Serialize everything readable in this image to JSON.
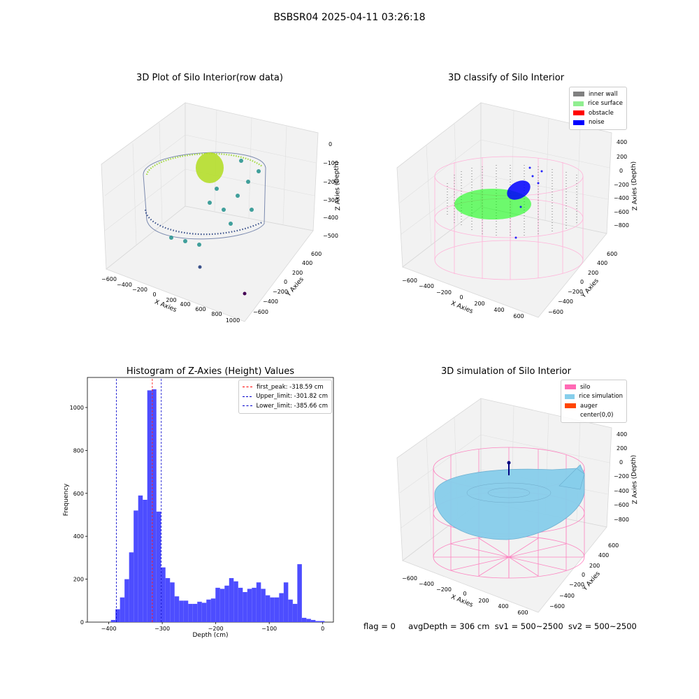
{
  "suptitle": "BSBSR04 2025-04-11 03:26:18",
  "panels": {
    "raw": {
      "title": "3D Plot of Silo Interior(row data)",
      "x_label": "X Axies",
      "y_label": "Y Axies",
      "z_label": "Z Axies (Depth)",
      "x_ticks": [
        "−600",
        "−400",
        "−200",
        "0",
        "200",
        "400",
        "600",
        "800",
        "1000"
      ],
      "y_ticks": [
        "600",
        "400",
        "200",
        "0",
        "−200",
        "−400",
        "−600"
      ],
      "z_ticks": [
        "0",
        "−100",
        "−200",
        "−300",
        "−400",
        "−500"
      ]
    },
    "classify": {
      "title": "3D classify of Silo Interior",
      "x_label": "X Axies",
      "y_label": "Y Axies",
      "z_label": "Z Axies (Depth)",
      "x_ticks": [
        "−600",
        "−400",
        "−200",
        "0",
        "200",
        "400",
        "600"
      ],
      "y_ticks": [
        "600",
        "400",
        "200",
        "0",
        "−200",
        "−400",
        "−600"
      ],
      "z_ticks": [
        "400",
        "200",
        "0",
        "−200",
        "−400",
        "−600",
        "−800"
      ],
      "legend": [
        {
          "label": "inner wall",
          "color": "#808080"
        },
        {
          "label": "rice surface",
          "color": "#90ee90"
        },
        {
          "label": "obstacle",
          "color": "#ff0000"
        },
        {
          "label": "noise",
          "color": "#0000ff"
        }
      ]
    },
    "simulation": {
      "title": "3D simulation of Silo Interior",
      "x_label": "X Axies",
      "y_label": "Y Axies",
      "z_label": "Z Axies (Depth)",
      "x_ticks": [
        "−600",
        "−400",
        "−200",
        "0",
        "200",
        "400",
        "600"
      ],
      "y_ticks": [
        "600",
        "400",
        "200",
        "0",
        "−200",
        "−400",
        "−600"
      ],
      "z_ticks": [
        "400",
        "200",
        "0",
        "−200",
        "−400",
        "−600",
        "−800"
      ],
      "legend": [
        {
          "label": "silo",
          "color": "#ff69b4"
        },
        {
          "label": "rice simulation",
          "color": "#87ceeb"
        },
        {
          "label": "auger",
          "color": "#ff4500"
        },
        {
          "label": "center(0,0)",
          "color": ""
        }
      ]
    }
  },
  "chart_data": {
    "type": "bar",
    "title": "Histogram of Z-Axies (Height) Values",
    "xlabel": "Depth (cm)",
    "ylabel": "Frequency",
    "xlim": [
      -440,
      20
    ],
    "ylim": [
      0,
      1140
    ],
    "x_ticks": [
      -400,
      -300,
      -200,
      -100,
      0
    ],
    "x_tick_labels": [
      "−400",
      "−300",
      "−200",
      "−100",
      "0"
    ],
    "y_ticks": [
      0,
      200,
      400,
      600,
      800,
      1000
    ],
    "bin_width": 8.5,
    "bin_starts": [
      -396,
      -387.5,
      -379,
      -370.5,
      -362,
      -353.5,
      -345,
      -336.5,
      -328,
      -319.5,
      -311,
      -302.5,
      -294,
      -285.5,
      -277,
      -268.5,
      -260,
      -251.5,
      -243,
      -234.5,
      -226,
      -217.5,
      -209,
      -200.5,
      -192,
      -183.5,
      -175,
      -166.5,
      -158,
      -149.5,
      -141,
      -132.5,
      -124,
      -115.5,
      -107,
      -98.5,
      -90,
      -81.5,
      -73,
      -64.5,
      -56,
      -47.5,
      -39,
      -30.5,
      -22,
      -13.5,
      -5
    ],
    "values": [
      10,
      60,
      115,
      200,
      325,
      520,
      590,
      570,
      1080,
      1085,
      515,
      255,
      205,
      185,
      120,
      100,
      100,
      85,
      85,
      95,
      90,
      105,
      110,
      160,
      155,
      170,
      205,
      190,
      160,
      140,
      155,
      160,
      185,
      155,
      125,
      115,
      115,
      135,
      185,
      105,
      85,
      270,
      20,
      15,
      10,
      5,
      5
    ],
    "bar_color": "#4d4dff",
    "vlines": [
      {
        "label": "first_peak: -318.59 cm",
        "x": -318.59,
        "color": "#ff0000"
      },
      {
        "label": "Upper_limit: -301.82 cm",
        "x": -301.82,
        "color": "#0000cc"
      },
      {
        "label": "Lower_limit: -385.66 cm",
        "x": -385.66,
        "color": "#0000cc"
      }
    ],
    "legend_position": "top-right"
  },
  "footer": {
    "flag": "flag = 0",
    "avg": "avgDepth = 306 cm",
    "sv1": "sv1 = 500~2500",
    "sv2": "sv2 = 500~2500"
  }
}
